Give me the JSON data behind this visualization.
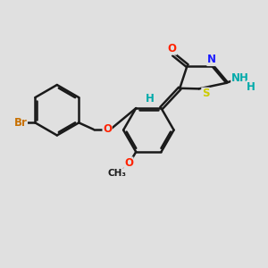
{
  "bg_color": "#e0e0e0",
  "bond_color": "#1a1a1a",
  "bond_width": 1.8,
  "atom_colors": {
    "Br": "#c87000",
    "O": "#ff2200",
    "N": "#1a1aff",
    "S": "#cccc00",
    "H": "#00aaaa",
    "C": "#1a1a1a"
  },
  "font_size": 8.5,
  "fig_size": [
    3.0,
    3.0
  ],
  "dpi": 100
}
